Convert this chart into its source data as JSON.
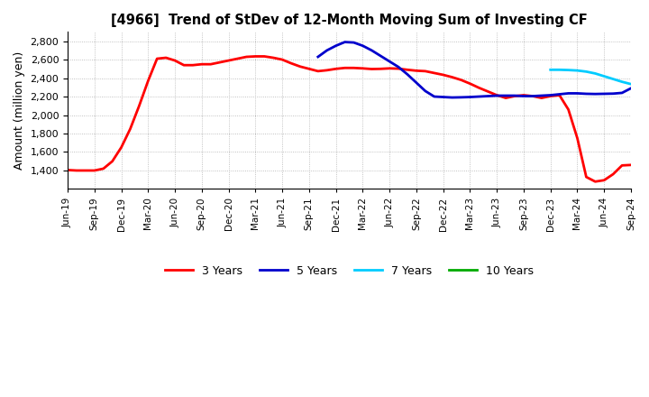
{
  "title": "[4966]  Trend of StDev of 12-Month Moving Sum of Investing CF",
  "ylabel": "Amount (million yen)",
  "ylim": [
    1200,
    2900
  ],
  "yticks": [
    1400,
    1600,
    1800,
    2000,
    2200,
    2400,
    2600,
    2800
  ],
  "background_color": "#ffffff",
  "plot_bg_color": "#ffffff",
  "grid_color": "#b0b0b0",
  "series": {
    "3years": {
      "color": "#ff0000",
      "label": "3 Years",
      "x": [
        0,
        1,
        2,
        3,
        4,
        5,
        6,
        7,
        8,
        9,
        10,
        11,
        12,
        13,
        14,
        15,
        16,
        17,
        18,
        19,
        20,
        21,
        22,
        23,
        24,
        25,
        26,
        27,
        28,
        29,
        30,
        31,
        32,
        33,
        34,
        35,
        36,
        37,
        38,
        39,
        40,
        41,
        42,
        43,
        44,
        45,
        46,
        47,
        48,
        49,
        50,
        51,
        52,
        53,
        54,
        55,
        56,
        57,
        58,
        59,
        60,
        61,
        62,
        63
      ],
      "y": [
        1405,
        1400,
        1400,
        1400,
        1420,
        1500,
        1650,
        1850,
        2100,
        2370,
        2610,
        2620,
        2590,
        2540,
        2540,
        2550,
        2550,
        2570,
        2590,
        2610,
        2630,
        2635,
        2635,
        2620,
        2600,
        2560,
        2525,
        2500,
        2475,
        2485,
        2500,
        2510,
        2510,
        2505,
        2498,
        2500,
        2505,
        2502,
        2490,
        2480,
        2475,
        2455,
        2435,
        2410,
        2380,
        2340,
        2295,
        2255,
        2215,
        2185,
        2205,
        2215,
        2205,
        2185,
        2205,
        2215,
        2060,
        1750,
        1330,
        1280,
        1295,
        1360,
        1455,
        1460
      ]
    },
    "5years": {
      "color": "#0000cc",
      "label": "5 Years",
      "x": [
        28,
        29,
        30,
        31,
        32,
        33,
        34,
        35,
        36,
        37,
        38,
        39,
        40,
        41,
        42,
        43,
        44,
        45,
        46,
        47,
        48,
        49,
        50,
        51,
        52,
        53,
        54,
        55,
        56,
        57,
        58,
        59,
        60,
        61,
        62,
        63
      ],
      "y": [
        2630,
        2700,
        2750,
        2790,
        2785,
        2750,
        2700,
        2640,
        2580,
        2520,
        2440,
        2350,
        2260,
        2200,
        2195,
        2190,
        2192,
        2195,
        2200,
        2205,
        2210,
        2210,
        2210,
        2205,
        2205,
        2210,
        2215,
        2225,
        2235,
        2235,
        2230,
        2228,
        2230,
        2232,
        2240,
        2290
      ]
    },
    "7years": {
      "color": "#00ccff",
      "label": "7 Years",
      "x": [
        54,
        55,
        56,
        57,
        58,
        59,
        60,
        61,
        62,
        63
      ],
      "y": [
        2490,
        2490,
        2487,
        2482,
        2470,
        2450,
        2420,
        2390,
        2360,
        2335
      ]
    },
    "10years": {
      "color": "#00aa00",
      "label": "10 Years",
      "x": [],
      "y": []
    }
  },
  "xtick_labels": [
    "Jun-19",
    "Sep-19",
    "Dec-19",
    "Mar-20",
    "Jun-20",
    "Sep-20",
    "Dec-20",
    "Mar-21",
    "Jun-21",
    "Sep-21",
    "Dec-21",
    "Mar-22",
    "Jun-22",
    "Sep-22",
    "Dec-22",
    "Mar-23",
    "Jun-23",
    "Sep-23",
    "Dec-23",
    "Mar-24",
    "Jun-24",
    "Sep-24"
  ]
}
